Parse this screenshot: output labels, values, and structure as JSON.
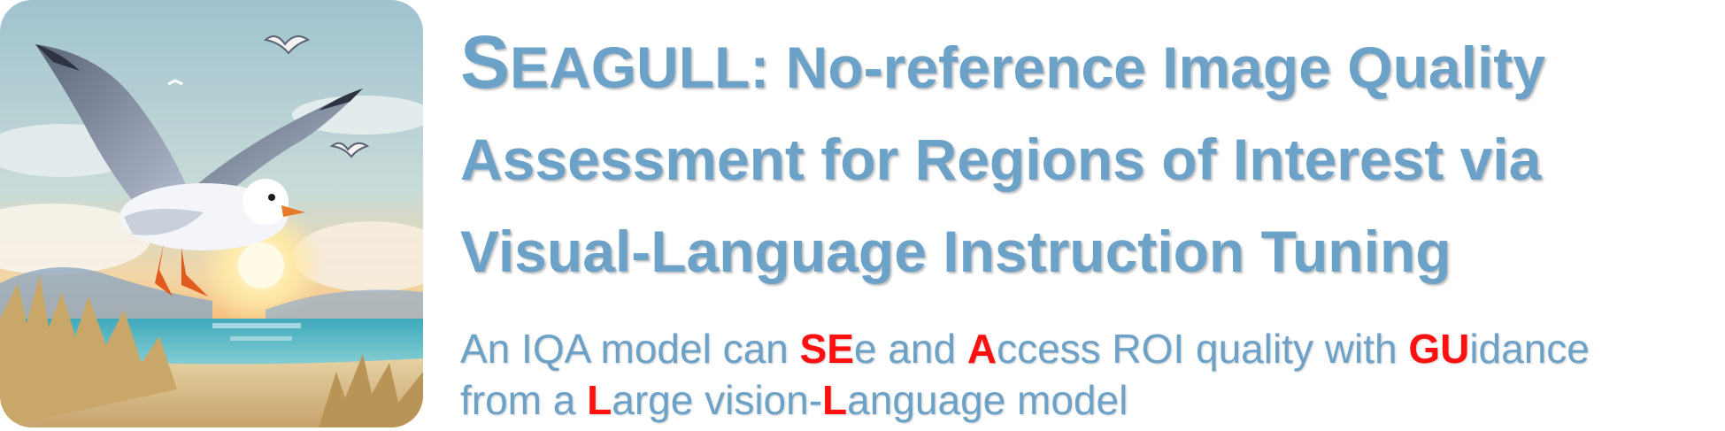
{
  "logo": {
    "icon": "seagull-icon",
    "description_colors": {
      "sky_top": "#a9c9d6",
      "sunset": "#f6c98a",
      "sea": "#4fb3c2",
      "sand": "#d9b27a"
    }
  },
  "title": {
    "acronym_first": "S",
    "acronym_rest": "EAGULL",
    "line1_rest": ": No-reference Image Quality",
    "line2": "Assessment for Regions of Interest via",
    "line3": "Visual-Language Instruction Tuning"
  },
  "subtitle": {
    "p1": "An IQA model can ",
    "h1": "SE",
    "p2": "e and ",
    "h2": "A",
    "p3": "ccess ROI quality with ",
    "h3": "GU",
    "p4": "idance",
    "p5": "from a ",
    "h4": "L",
    "p6": "arge vision-",
    "h5": "L",
    "p7": "anguage model"
  },
  "colors": {
    "title": "#6ca1c8",
    "highlight": "#ff1010"
  }
}
